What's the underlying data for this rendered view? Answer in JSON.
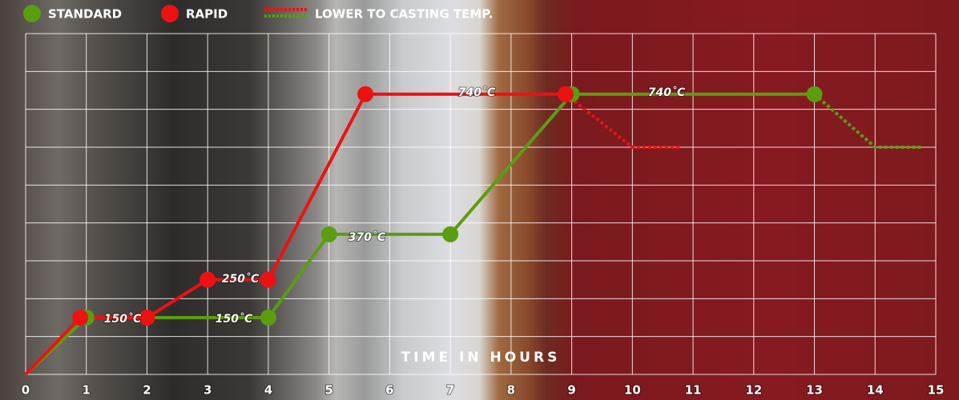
{
  "chart_data": {
    "type": "line",
    "xlabel": "TIME IN HOURS",
    "lower_label": "LOWER TO CASTING TEMP.",
    "xlim": [
      0,
      15
    ],
    "xticks": [
      0,
      1,
      2,
      3,
      4,
      5,
      6,
      7,
      8,
      9,
      10,
      11,
      12,
      13,
      14,
      15
    ],
    "ylim": [
      0,
      900
    ],
    "yticks": [
      0,
      100,
      200,
      300,
      400,
      500,
      600,
      700,
      800,
      900
    ],
    "grid": true,
    "series": [
      {
        "name": "STANDARD",
        "color": "#5a9e10",
        "x": [
          0,
          1,
          4,
          5,
          7,
          9,
          13
        ],
        "values": [
          0,
          150,
          150,
          370,
          370,
          740,
          740
        ],
        "lower_x": [
          14,
          14.8
        ],
        "lower_values": [
          600,
          600
        ]
      },
      {
        "name": "RAPID",
        "color": "#ee1111",
        "x": [
          0,
          0.9,
          2,
          3,
          4,
          5.6,
          8.9
        ],
        "values": [
          0,
          150,
          150,
          250,
          250,
          740,
          740
        ],
        "lower_x": [
          10,
          10.8
        ],
        "lower_values": [
          600,
          600
        ]
      }
    ],
    "annotations": [
      "150˚C",
      "250˚C",
      "150˚C",
      "370˚C",
      "740˚C",
      "740˚C"
    ]
  }
}
